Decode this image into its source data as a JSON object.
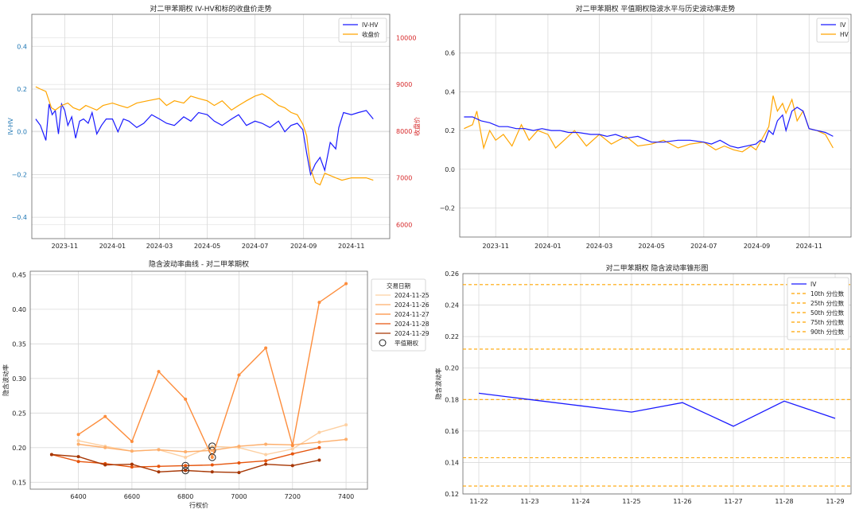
{
  "chart_data": [
    {
      "id": "p1",
      "type": "line",
      "title": "对二甲苯期权 IV-HV和标的收盘价走势",
      "ylabel": "IV-HV",
      "y2label": "收盘价",
      "xlim": [
        "2023-09-20",
        "2024-12-20"
      ],
      "ylim": [
        -0.5,
        0.55
      ],
      "y2lim": [
        5700,
        10500
      ],
      "xticks": [
        "2023-11",
        "2024-01",
        "2024-03",
        "2024-05",
        "2024-07",
        "2024-09",
        "2024-11"
      ],
      "xtick_dates": [
        "2023-11-01",
        "2024-01-01",
        "2024-03-01",
        "2024-05-01",
        "2024-07-01",
        "2024-09-01",
        "2024-11-01"
      ],
      "yticks": [
        -0.4,
        -0.2,
        0.0,
        0.2,
        0.4
      ],
      "ytick_labels": [
        "−0.4",
        "−0.2",
        "0.0",
        "0.2",
        "0.4"
      ],
      "y2ticks": [
        6000,
        7000,
        8000,
        9000,
        10000
      ],
      "y2tick_labels": [
        "6000",
        "7000",
        "8000",
        "9000",
        "10000"
      ],
      "grid": true,
      "legend_position": "top-right",
      "legend": [
        "IV-HV",
        "收盘价"
      ],
      "colors": {
        "left_axis": "#1f77b4",
        "right_axis": "#d62728"
      },
      "series": [
        {
          "name": "IV-HV",
          "axis": "left",
          "color": "#1a1aff",
          "x": [
            "2023-09-25",
            "2023-10-01",
            "2023-10-08",
            "2023-10-12",
            "2023-10-16",
            "2023-10-20",
            "2023-10-24",
            "2023-10-28",
            "2023-11-01",
            "2023-11-05",
            "2023-11-10",
            "2023-11-15",
            "2023-11-20",
            "2023-11-25",
            "2023-12-01",
            "2023-12-06",
            "2023-12-12",
            "2023-12-18",
            "2023-12-24",
            "2024-01-01",
            "2024-01-08",
            "2024-01-15",
            "2024-01-22",
            "2024-02-01",
            "2024-02-10",
            "2024-02-20",
            "2024-03-01",
            "2024-03-10",
            "2024-03-20",
            "2024-04-01",
            "2024-04-10",
            "2024-04-20",
            "2024-05-01",
            "2024-05-10",
            "2024-05-20",
            "2024-06-01",
            "2024-06-10",
            "2024-06-20",
            "2024-07-01",
            "2024-07-10",
            "2024-07-20",
            "2024-07-31",
            "2024-08-08",
            "2024-08-16",
            "2024-08-24",
            "2024-08-31",
            "2024-09-05",
            "2024-09-10",
            "2024-09-16",
            "2024-09-22",
            "2024-09-28",
            "2024-10-05",
            "2024-10-12",
            "2024-10-16",
            "2024-10-22",
            "2024-11-01",
            "2024-11-10",
            "2024-11-20",
            "2024-11-29"
          ],
          "y": [
            0.06,
            0.03,
            -0.04,
            0.13,
            0.08,
            0.1,
            -0.01,
            0.13,
            0.1,
            0.03,
            0.07,
            -0.03,
            0.05,
            0.06,
            0.04,
            0.09,
            -0.01,
            0.03,
            0.06,
            0.06,
            0.0,
            0.06,
            0.05,
            0.02,
            0.04,
            0.08,
            0.06,
            0.04,
            0.03,
            0.07,
            0.05,
            0.09,
            0.08,
            0.05,
            0.03,
            0.06,
            0.08,
            0.03,
            0.05,
            0.04,
            0.02,
            0.05,
            0.0,
            0.03,
            0.04,
            0.01,
            -0.1,
            -0.2,
            -0.15,
            -0.12,
            -0.18,
            -0.05,
            -0.08,
            0.02,
            0.09,
            0.08,
            0.09,
            0.1,
            0.06
          ]
        },
        {
          "name": "收盘价",
          "axis": "right",
          "color": "#ffa500",
          "x": [
            "2023-09-25",
            "2023-10-01",
            "2023-10-08",
            "2023-10-15",
            "2023-10-20",
            "2023-10-28",
            "2023-11-05",
            "2023-11-12",
            "2023-11-20",
            "2023-11-28",
            "2023-12-05",
            "2023-12-12",
            "2023-12-20",
            "2024-01-01",
            "2024-01-10",
            "2024-01-20",
            "2024-02-01",
            "2024-02-15",
            "2024-03-01",
            "2024-03-10",
            "2024-03-20",
            "2024-04-01",
            "2024-04-10",
            "2024-04-20",
            "2024-05-01",
            "2024-05-10",
            "2024-05-20",
            "2024-06-01",
            "2024-06-10",
            "2024-06-20",
            "2024-07-01",
            "2024-07-10",
            "2024-07-20",
            "2024-07-31",
            "2024-08-08",
            "2024-08-16",
            "2024-08-24",
            "2024-08-31",
            "2024-09-05",
            "2024-09-10",
            "2024-09-16",
            "2024-09-22",
            "2024-09-28",
            "2024-10-05",
            "2024-10-12",
            "2024-10-20",
            "2024-11-01",
            "2024-11-10",
            "2024-11-20",
            "2024-11-29"
          ],
          "y": [
            8950,
            8900,
            8850,
            8500,
            8450,
            8550,
            8600,
            8500,
            8450,
            8550,
            8500,
            8450,
            8550,
            8600,
            8550,
            8500,
            8600,
            8650,
            8700,
            8550,
            8650,
            8600,
            8750,
            8700,
            8650,
            8550,
            8650,
            8450,
            8550,
            8650,
            8750,
            8800,
            8700,
            8550,
            8500,
            8400,
            8350,
            8150,
            7900,
            7200,
            6900,
            6850,
            7100,
            7050,
            7000,
            6950,
            7000,
            7000,
            7000,
            6950
          ]
        }
      ]
    },
    {
      "id": "p2",
      "type": "line",
      "title": "对二甲苯期权 平值期权隐波水平与历史波动率走势",
      "xlim": [
        "2023-09-20",
        "2024-12-20"
      ],
      "ylim": [
        -0.35,
        0.8
      ],
      "xticks": [
        "2023-11",
        "2024-01",
        "2024-03",
        "2024-05",
        "2024-07",
        "2024-09",
        "2024-11"
      ],
      "xtick_dates": [
        "2023-11-01",
        "2024-01-01",
        "2024-03-01",
        "2024-05-01",
        "2024-07-01",
        "2024-09-01",
        "2024-11-01"
      ],
      "yticks": [
        -0.2,
        0.0,
        0.2,
        0.4,
        0.6
      ],
      "ytick_labels": [
        "−0.2",
        "0.0",
        "0.2",
        "0.4",
        "0.6"
      ],
      "grid": true,
      "legend_position": "top-right",
      "legend": [
        "IV",
        "HV"
      ],
      "series": [
        {
          "name": "IV",
          "color": "#1a1aff",
          "x": [
            "2023-09-25",
            "2023-10-05",
            "2023-10-15",
            "2023-10-25",
            "2023-11-05",
            "2023-11-15",
            "2023-11-25",
            "2023-12-05",
            "2023-12-15",
            "2023-12-25",
            "2024-01-05",
            "2024-01-15",
            "2024-01-25",
            "2024-02-05",
            "2024-02-20",
            "2024-03-01",
            "2024-03-10",
            "2024-03-20",
            "2024-04-01",
            "2024-04-15",
            "2024-05-01",
            "2024-05-15",
            "2024-06-01",
            "2024-06-15",
            "2024-07-01",
            "2024-07-10",
            "2024-07-20",
            "2024-08-01",
            "2024-08-10",
            "2024-08-20",
            "2024-08-31",
            "2024-09-05",
            "2024-09-10",
            "2024-09-15",
            "2024-09-20",
            "2024-09-25",
            "2024-10-01",
            "2024-10-05",
            "2024-10-12",
            "2024-10-18",
            "2024-10-25",
            "2024-11-01",
            "2024-11-10",
            "2024-11-20",
            "2024-11-29"
          ],
          "y": [
            0.27,
            0.27,
            0.25,
            0.24,
            0.22,
            0.22,
            0.21,
            0.21,
            0.2,
            0.21,
            0.2,
            0.2,
            0.19,
            0.19,
            0.18,
            0.18,
            0.17,
            0.18,
            0.16,
            0.17,
            0.14,
            0.14,
            0.15,
            0.15,
            0.14,
            0.13,
            0.15,
            0.12,
            0.11,
            0.12,
            0.13,
            0.15,
            0.14,
            0.2,
            0.18,
            0.25,
            0.28,
            0.2,
            0.3,
            0.32,
            0.3,
            0.21,
            0.2,
            0.19,
            0.17
          ]
        },
        {
          "name": "HV",
          "color": "#ffa500",
          "x": [
            "2023-09-25",
            "2023-10-05",
            "2023-10-10",
            "2023-10-18",
            "2023-10-25",
            "2023-11-01",
            "2023-11-10",
            "2023-11-20",
            "2023-12-01",
            "2023-12-10",
            "2023-12-20",
            "2024-01-01",
            "2024-01-10",
            "2024-01-20",
            "2024-02-01",
            "2024-02-15",
            "2024-03-01",
            "2024-03-15",
            "2024-04-01",
            "2024-04-15",
            "2024-05-01",
            "2024-05-15",
            "2024-06-01",
            "2024-06-15",
            "2024-07-01",
            "2024-07-15",
            "2024-07-25",
            "2024-08-05",
            "2024-08-15",
            "2024-08-25",
            "2024-08-31",
            "2024-09-05",
            "2024-09-10",
            "2024-09-15",
            "2024-09-20",
            "2024-09-25",
            "2024-10-01",
            "2024-10-05",
            "2024-10-12",
            "2024-10-18",
            "2024-10-25",
            "2024-11-01",
            "2024-11-10",
            "2024-11-20",
            "2024-11-29"
          ],
          "y": [
            0.21,
            0.23,
            0.3,
            0.11,
            0.2,
            0.15,
            0.18,
            0.12,
            0.23,
            0.15,
            0.2,
            0.18,
            0.11,
            0.15,
            0.2,
            0.12,
            0.18,
            0.13,
            0.17,
            0.12,
            0.13,
            0.15,
            0.11,
            0.13,
            0.14,
            0.1,
            0.12,
            0.1,
            0.09,
            0.12,
            0.1,
            0.14,
            0.18,
            0.22,
            0.38,
            0.3,
            0.34,
            0.29,
            0.36,
            0.25,
            0.3,
            0.21,
            0.2,
            0.18,
            0.11
          ]
        }
      ]
    },
    {
      "id": "p3",
      "type": "line",
      "title": "隐含波动率曲线 - 对二甲苯期权",
      "xlabel": "行权价",
      "ylabel": "隐含波动率",
      "xlim": [
        6220,
        7480
      ],
      "ylim": [
        0.14,
        0.455
      ],
      "xticks": [
        6400,
        6600,
        6800,
        7000,
        7200,
        7400
      ],
      "xtick_labels": [
        "6400",
        "6600",
        "6800",
        "7000",
        "7200",
        "7400"
      ],
      "yticks": [
        0.15,
        0.2,
        0.25,
        0.3,
        0.35,
        0.4,
        0.45
      ],
      "ytick_labels": [
        "0.15",
        "0.20",
        "0.25",
        "0.30",
        "0.35",
        "0.40",
        "0.45"
      ],
      "grid": true,
      "legend_title": "交易日期",
      "legend_position": "top-right",
      "atm_label": "平值期权",
      "series": [
        {
          "name": "2024-11-25",
          "color": "#fdd0a2",
          "x": [
            6400,
            6500,
            6600,
            6700,
            6800,
            6900,
            7000,
            7100,
            7200,
            7300,
            7400
          ],
          "y": [
            0.21,
            0.202,
            0.195,
            0.197,
            0.186,
            0.202,
            0.2,
            0.19,
            0.198,
            0.222,
            0.233
          ],
          "atm": [
            6900,
            0.202
          ]
        },
        {
          "name": "2024-11-26",
          "color": "#fdae6b",
          "x": [
            6400,
            6500,
            6600,
            6700,
            6800,
            6900,
            7000,
            7100,
            7200,
            7300,
            7400
          ],
          "y": [
            0.205,
            0.2,
            0.195,
            0.197,
            0.194,
            0.196,
            0.202,
            0.205,
            0.204,
            0.208,
            0.212
          ],
          "atm": [
            6900,
            0.196
          ]
        },
        {
          "name": "2024-11-27",
          "color": "#fd8d3c",
          "x": [
            6400,
            6500,
            6600,
            6700,
            6800,
            6900,
            7000,
            7100,
            7200,
            7300,
            7400
          ],
          "y": [
            0.219,
            0.245,
            0.209,
            0.31,
            0.27,
            0.186,
            0.305,
            0.344,
            0.203,
            0.41,
            0.437
          ],
          "atm": [
            6900,
            0.186
          ]
        },
        {
          "name": "2024-11-28",
          "color": "#e6550d",
          "x": [
            6300,
            6400,
            6500,
            6600,
            6700,
            6800,
            6900,
            7000,
            7100,
            7200,
            7300
          ],
          "y": [
            0.19,
            0.18,
            0.177,
            0.172,
            0.173,
            0.174,
            0.175,
            0.178,
            0.181,
            0.191,
            0.2
          ],
          "atm": [
            6800,
            0.174
          ]
        },
        {
          "name": "2024-11-29",
          "color": "#a63603",
          "x": [
            6300,
            6400,
            6500,
            6600,
            6700,
            6800,
            6900,
            7000,
            7100,
            7200,
            7300
          ],
          "y": [
            0.19,
            0.187,
            0.175,
            0.176,
            0.165,
            0.167,
            0.165,
            0.164,
            0.176,
            0.174,
            0.182
          ],
          "atm": [
            6800,
            0.167
          ]
        }
      ]
    },
    {
      "id": "p4",
      "type": "line",
      "title": "对二甲苯期权 隐含波动率锥形图",
      "ylabel": "隐含波动率",
      "categories": [
        "11-22",
        "11-23",
        "11-24",
        "11-25",
        "11-26",
        "11-27",
        "11-28",
        "11-29"
      ],
      "ylim": [
        0.12,
        0.26
      ],
      "yticks": [
        0.12,
        0.14,
        0.16,
        0.18,
        0.2,
        0.22,
        0.24,
        0.26
      ],
      "ytick_labels": [
        "0.12",
        "0.14",
        "0.16",
        "0.18",
        "0.20",
        "0.22",
        "0.24",
        "0.26"
      ],
      "grid": true,
      "legend_position": "top-right",
      "series": [
        {
          "name": "IV",
          "color": "#1a1aff",
          "values": [
            0.184,
            0.18,
            0.176,
            0.172,
            0.178,
            0.163,
            0.179,
            0.168
          ]
        }
      ],
      "quantiles": [
        {
          "name": "10th 分位数",
          "value": 0.125
        },
        {
          "name": "25th 分位数",
          "value": 0.143
        },
        {
          "name": "50th 分位数",
          "value": 0.18
        },
        {
          "name": "75th 分位数",
          "value": 0.212
        },
        {
          "name": "90th 分位数",
          "value": 0.253
        }
      ],
      "quantile_color": "#ffa500"
    }
  ]
}
